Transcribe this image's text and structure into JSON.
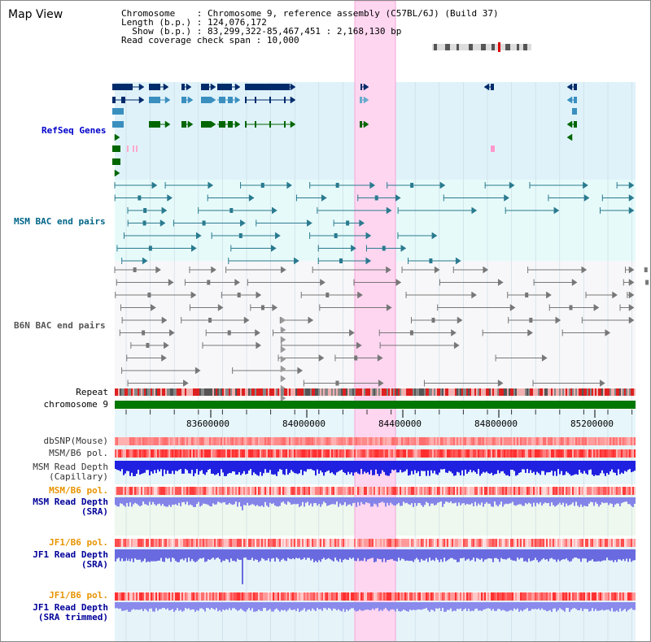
{
  "title": "Map View",
  "info": {
    "chromosome_key": "Chromosome",
    "chromosome_val": "Chromosome 9, reference assembly (C57BL/6J) (Build 37)",
    "length_key": "Length (b.p.)",
    "length_val": "124,076,172",
    "show_key": "Show (b.p.)",
    "show_val": "83,299,322-85,467,451 : 2,168,130 bp",
    "coverage_key": "Read coverage check span",
    "coverage_val": "10,000"
  },
  "tracks": {
    "refseq": "RefSeq Genes",
    "msm_bac": "MSM BAC end pairs",
    "b6n_bac": "B6N BAC end pairs",
    "repeat": "Repeat",
    "chromosome": "chromosome 9",
    "dbsnp": "dbSNP(Mouse)",
    "msm_b6_pol_1": "MSM/B6 pol.",
    "msm_depth_cap_1": "MSM Read Depth",
    "msm_depth_cap_2": "(Capillary)",
    "msm_b6_pol_2": "MSM/B6 pol.",
    "msm_depth_sra_1": "MSM Read Depth",
    "msm_depth_sra_2": "(SRA)",
    "jf1_b6_pol_1": "JF1/B6 pol.",
    "jf1_depth_sra_1": "JF1 Read Depth",
    "jf1_depth_sra_2": "(SRA)",
    "jf1_b6_pol_2": "JF1/B6 pol.",
    "jf1_depth_trim_1": "JF1 Read Depth",
    "jf1_depth_trim_2": "(SRA trimmed)"
  },
  "axis_ticks": [
    "83600000",
    "84000000",
    "84400000",
    "84800000",
    "85200000"
  ],
  "colors": {
    "refseq_label": "#0000cc",
    "msm_label": "#006688",
    "b6n_label": "#555555",
    "sra_label": "#000099",
    "pol_orange": "#e89400",
    "chromosome_green": "#007700",
    "highlight_pink": "#ffd6f0"
  }
}
